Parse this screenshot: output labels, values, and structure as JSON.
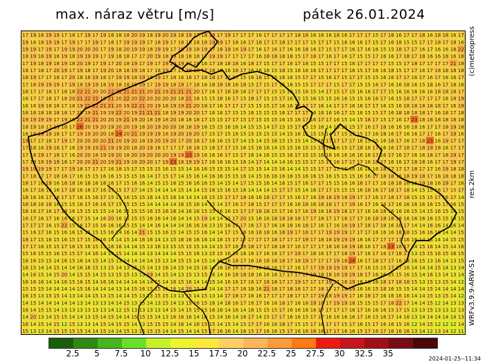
{
  "header": {
    "title": "max. náraz větru [m/s]",
    "date": "pátek 26.01.2024"
  },
  "side_labels": {
    "copyright": "(c)meteopress",
    "resolution": "res.2km",
    "model": "WRFv3.9.9-ARW-S1"
  },
  "legend": {
    "colors": [
      "#1a5e0a",
      "#2e8b12",
      "#49b51c",
      "#67e02a",
      "#c8f028",
      "#ecf52c",
      "#ffe83a",
      "#ffd060",
      "#ffb658",
      "#ff9a38",
      "#ff7a10",
      "#ee1a10",
      "#c8141c",
      "#a01018",
      "#7a0c14",
      "#4a0808"
    ],
    "labels": [
      "2.5",
      "5",
      "7.5",
      "10",
      "12.5",
      "15",
      "17.5",
      "20",
      "22.5",
      "25",
      "27.5",
      "30",
      "32.5",
      "35"
    ]
  },
  "timestamp": "2024-01-25--11:34",
  "map": {
    "grid_cols": 57,
    "grid_rows": 43,
    "seed": 26012024
  }
}
